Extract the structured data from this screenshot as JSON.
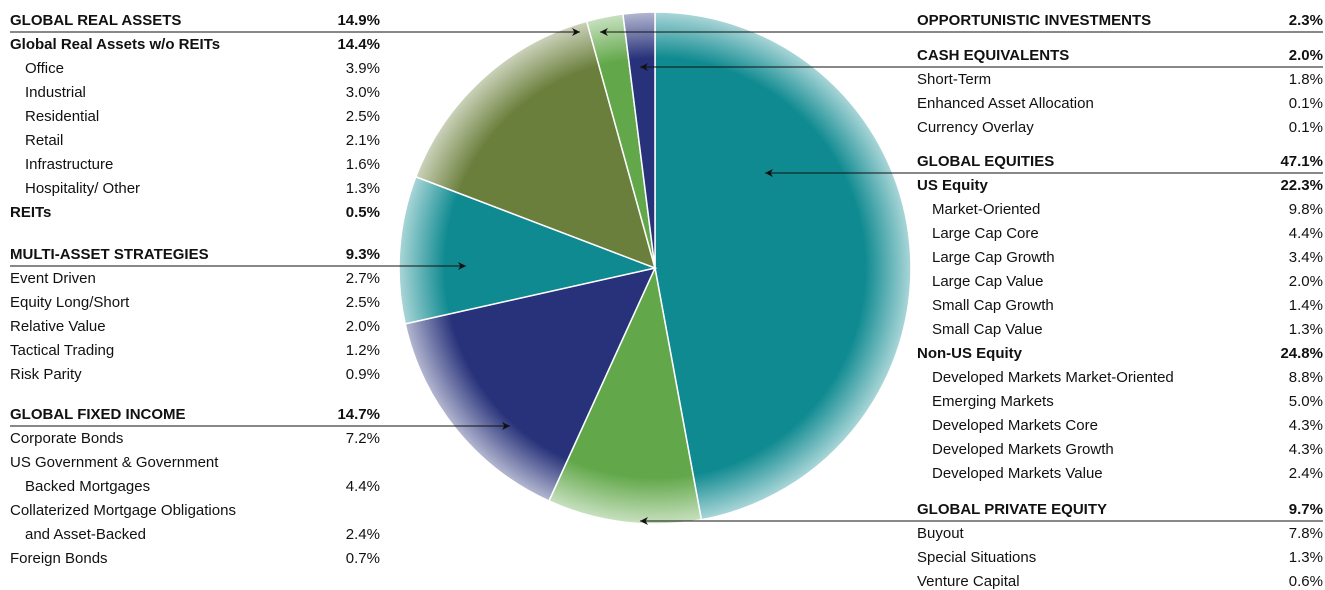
{
  "chart_data": {
    "type": "pie",
    "categories": [
      "GLOBAL EQUITIES",
      "GLOBAL PRIVATE EQUITY",
      "GLOBAL FIXED INCOME",
      "MULTI-ASSET STRATEGIES",
      "GLOBAL REAL ASSETS",
      "OPPORTUNISTIC INVESTMENTS",
      "CASH EQUIVALENTS"
    ],
    "values": [
      47.1,
      9.7,
      14.7,
      9.3,
      14.9,
      2.3,
      2.0
    ],
    "value_labels": [
      "47.1%",
      "9.7%",
      "14.7%",
      "9.3%",
      "14.9%",
      "2.3%",
      "2.0%"
    ],
    "colors": [
      "#0e8a90",
      "#62a84a",
      "#27327a",
      "#0e8a90",
      "#6b7f3c",
      "#62a84a",
      "#27327a"
    ],
    "breakdown": [
      [
        {
          "label": "US Equity",
          "value": "22.3%",
          "style": "bold"
        },
        {
          "label": "Market-Oriented",
          "value": "9.8%",
          "style": "indent"
        },
        {
          "label": "Large Cap Core",
          "value": "4.4%",
          "style": "indent"
        },
        {
          "label": "Large Cap Growth",
          "value": "3.4%",
          "style": "indent"
        },
        {
          "label": "Large Cap Value",
          "value": "2.0%",
          "style": "indent"
        },
        {
          "label": "Small Cap Growth",
          "value": "1.4%",
          "style": "indent"
        },
        {
          "label": "Small Cap Value",
          "value": "1.3%",
          "style": "indent"
        },
        {
          "label": "Non-US Equity",
          "value": "24.8%",
          "style": "bold"
        },
        {
          "label": "Developed Markets Market-Oriented",
          "value": "8.8%",
          "style": "indent"
        },
        {
          "label": "Emerging Markets",
          "value": "5.0%",
          "style": "indent"
        },
        {
          "label": "Developed Markets Core",
          "value": "4.3%",
          "style": "indent"
        },
        {
          "label": "Developed Markets Growth",
          "value": "4.3%",
          "style": "indent"
        },
        {
          "label": "Developed Markets Value",
          "value": "2.4%",
          "style": "indent"
        }
      ],
      [
        {
          "label": "Buyout",
          "value": "7.8%",
          "style": "plain"
        },
        {
          "label": "Special Situations",
          "value": "1.3%",
          "style": "plain"
        },
        {
          "label": "Venture Capital",
          "value": "0.6%",
          "style": "plain"
        }
      ],
      [
        {
          "label": "Corporate Bonds",
          "value": "7.2%",
          "style": "plain"
        },
        {
          "label": "US Government & Government",
          "style": "plain"
        },
        {
          "label": "Backed Mortgages",
          "value": "4.4%",
          "style": "indent"
        },
        {
          "label": "Collaterized Mortgage Obligations",
          "style": "plain"
        },
        {
          "label": "and Asset-Backed",
          "value": "2.4%",
          "style": "indent"
        },
        {
          "label": "Foreign Bonds",
          "value": "0.7%",
          "style": "plain"
        }
      ],
      [
        {
          "label": "Event Driven",
          "value": "2.7%",
          "style": "plain"
        },
        {
          "label": "Equity Long/Short",
          "value": "2.5%",
          "style": "plain"
        },
        {
          "label": "Relative Value",
          "value": "2.0%",
          "style": "plain"
        },
        {
          "label": "Tactical Trading",
          "value": "1.2%",
          "style": "plain"
        },
        {
          "label": "Risk Parity",
          "value": "0.9%",
          "style": "plain"
        }
      ],
      [
        {
          "label": "Global Real Assets w/o REITs",
          "value": "14.4%",
          "style": "bold"
        },
        {
          "label": "Office",
          "value": "3.9%",
          "style": "indent"
        },
        {
          "label": "Industrial",
          "value": "3.0%",
          "style": "indent"
        },
        {
          "label": "Residential",
          "value": "2.5%",
          "style": "indent"
        },
        {
          "label": "Retail",
          "value": "2.1%",
          "style": "indent"
        },
        {
          "label": "Infrastructure",
          "value": "1.6%",
          "style": "indent"
        },
        {
          "label": "Hospitality/ Other",
          "value": "1.3%",
          "style": "indent"
        },
        {
          "label": "REITs",
          "value": "0.5%",
          "style": "bold"
        }
      ],
      [],
      [
        {
          "label": "Short-Term",
          "value": "1.8%",
          "style": "plain"
        },
        {
          "label": "Enhanced Asset Allocation",
          "value": "0.1%",
          "style": "plain"
        },
        {
          "label": "Currency Overlay",
          "value": "0.1%",
          "style": "plain"
        }
      ]
    ]
  }
}
